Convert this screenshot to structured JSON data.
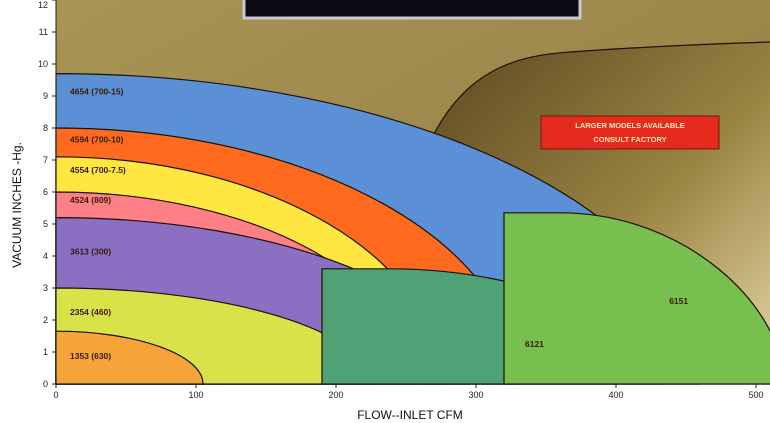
{
  "chart_data": {
    "type": "area",
    "xlabel": "FLOW--INLET CFM",
    "ylabel": "VACUUM INCHES -Hg.",
    "xlim": [
      0,
      520
    ],
    "ylim": [
      0,
      12
    ],
    "xticks": [
      0,
      100,
      200,
      300,
      400,
      500
    ],
    "yticks": [
      0,
      1,
      2,
      3,
      4,
      5,
      6,
      7,
      8,
      9,
      10,
      11,
      12
    ],
    "grid": false,
    "background_color": "#9e8a4a",
    "series": [
      {
        "name": "4654 (700-15)",
        "color": "#5b8fd6",
        "x0": 0,
        "x1": 460,
        "ymax": 9.7,
        "shape": "quarter",
        "label_at": [
          10,
          9.05
        ]
      },
      {
        "name": "4594 (700-10)",
        "color": "#ff6a1f",
        "x0": 0,
        "x1": 330,
        "ymax": 8.0,
        "shape": "quarter",
        "label_at": [
          10,
          7.55
        ]
      },
      {
        "name": "4554 (700-7.5)",
        "color": "#ffe640",
        "x0": 0,
        "x1": 275,
        "ymax": 7.1,
        "shape": "quarter",
        "label_at": [
          10,
          6.6
        ]
      },
      {
        "name": "4524 (809)",
        "color": "#ff7f86",
        "x0": 0,
        "x1": 255,
        "ymax": 6.0,
        "shape": "quarter",
        "label_at": [
          10,
          5.65
        ]
      },
      {
        "name": "3613 (300)",
        "color": "#8a6fc2",
        "x0": 0,
        "x1": 295,
        "ymax": 5.2,
        "shape": "quarter",
        "label_at": [
          10,
          4.05
        ]
      },
      {
        "name": "2354 (460)",
        "color": "#d8e34a",
        "x0": 0,
        "x1": 225,
        "ymax": 3.0,
        "shape": "quarter",
        "label_at": [
          10,
          2.15
        ]
      },
      {
        "name": "1353 (630)",
        "color": "#f6a33a",
        "x0": 0,
        "x1": 105,
        "ymax": 1.65,
        "shape": "quarter",
        "label_at": [
          10,
          0.78
        ]
      },
      {
        "name": "6121",
        "color": "#4fa276",
        "x0": 190,
        "x1": 432,
        "ymax": 3.6,
        "shape": "lobe",
        "label_at": [
          335,
          1.15
        ]
      },
      {
        "name": "6151",
        "color": "#77bf4e",
        "x0": 320,
        "x1": 520,
        "ymax": 5.35,
        "shape": "lobe",
        "label_at": [
          438,
          2.5
        ]
      }
    ],
    "large_region": {
      "color": "#6a5426",
      "label_lines": [
        "LARGER MODELS AVAILABLE",
        "CONSULT FACTORY"
      ],
      "label_box_color": "#e52a1e"
    }
  }
}
